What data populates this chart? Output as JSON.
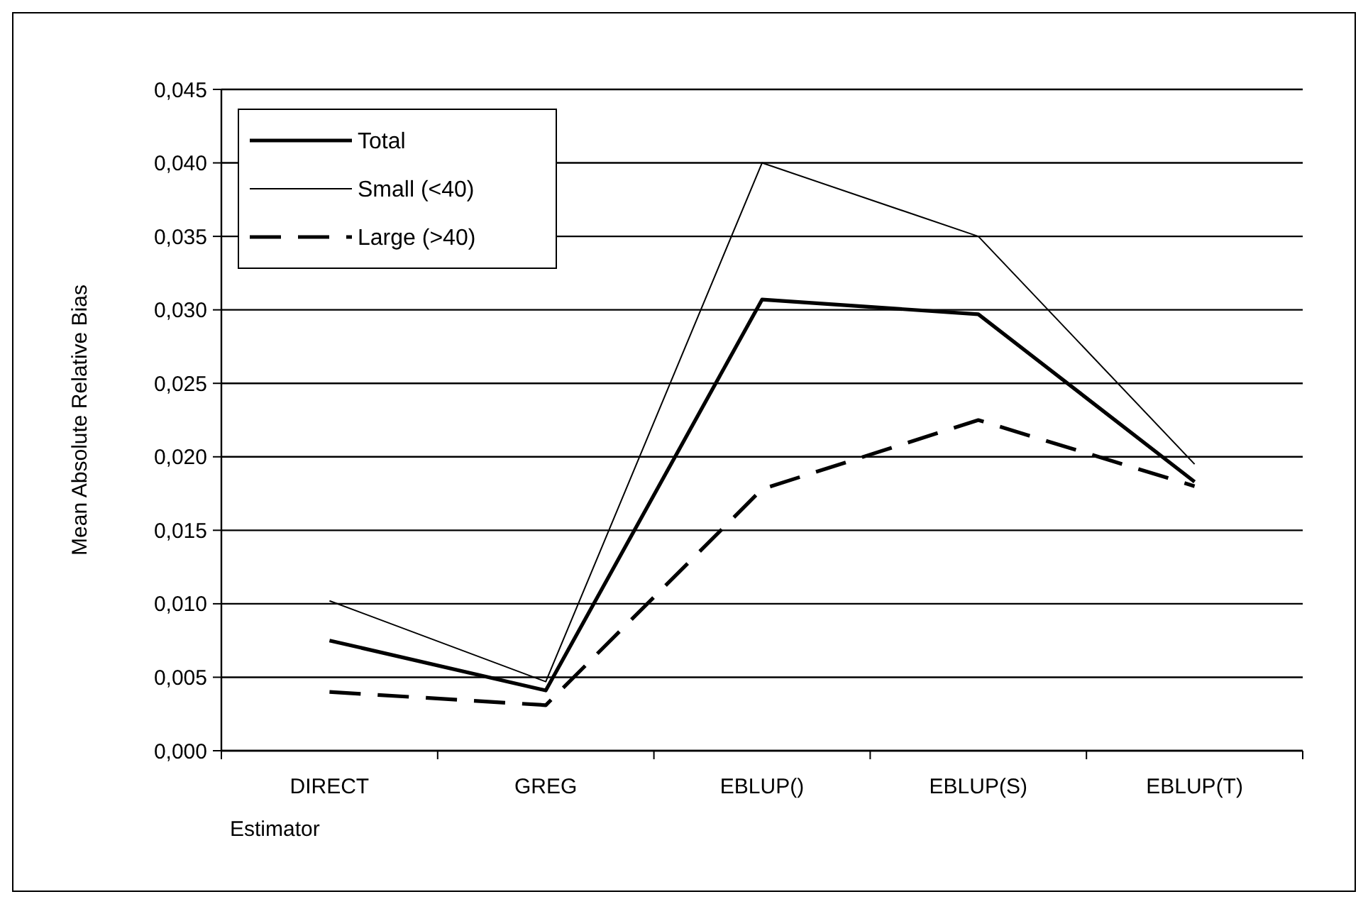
{
  "chart_data": {
    "type": "line",
    "xlabel": "Estimator",
    "ylabel": "Mean Absolute Relative Bias",
    "categories": [
      "DIRECT",
      "GREG",
      "EBLUP()",
      "EBLUP(S)",
      "EBLUP(T)"
    ],
    "series": [
      {
        "name": "Total",
        "color": "#000000",
        "values": [
          0.0075,
          0.0041,
          0.0307,
          0.0297,
          0.0183
        ],
        "line_style": "solid"
      },
      {
        "name": "Small (<40)",
        "color": "#000000",
        "values": [
          0.0102,
          0.0047,
          0.04,
          0.035,
          0.0195
        ],
        "line_style": "solid"
      },
      {
        "name": "Large (>40)",
        "color": "#000000",
        "values": [
          0.004,
          0.0031,
          0.0178,
          0.0225,
          0.018
        ],
        "line_style": "dashed"
      }
    ],
    "ylim": [
      0,
      0.045
    ],
    "yticks": [
      {
        "value": 0,
        "label": "0,000"
      },
      {
        "value": 0.005,
        "label": "0,005"
      },
      {
        "value": 0.01,
        "label": "0,010"
      },
      {
        "value": 0.015,
        "label": "0,015"
      },
      {
        "value": 0.02,
        "label": "0,020"
      },
      {
        "value": 0.025,
        "label": "0,025"
      },
      {
        "value": 0.03,
        "label": "0,030"
      },
      {
        "value": 0.035,
        "label": "0,035"
      },
      {
        "value": 0.04,
        "label": "0,040"
      },
      {
        "value": 0.045,
        "label": "0,045"
      }
    ],
    "grid": "y",
    "legend": "top left",
    "marker": "none"
  }
}
